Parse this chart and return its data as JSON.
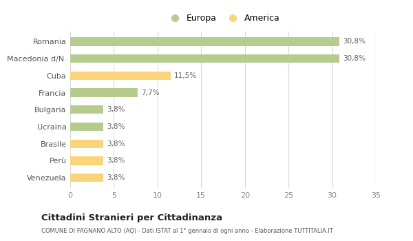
{
  "categories": [
    "Venezuela",
    "Perù",
    "Brasile",
    "Ucraina",
    "Bulgaria",
    "Francia",
    "Cuba",
    "Macedonia d/N.",
    "Romania"
  ],
  "values": [
    3.8,
    3.8,
    3.8,
    3.8,
    3.8,
    7.7,
    11.5,
    30.8,
    30.8
  ],
  "labels": [
    "3,8%",
    "3,8%",
    "3,8%",
    "3,8%",
    "3,8%",
    "7,7%",
    "11,5%",
    "30,8%",
    "30,8%"
  ],
  "colors": [
    "#f9d47a",
    "#f9d47a",
    "#f9d47a",
    "#b5cc8e",
    "#b5cc8e",
    "#b5cc8e",
    "#f9d47a",
    "#b5cc8e",
    "#b5cc8e"
  ],
  "legend": [
    {
      "label": "Europa",
      "color": "#b5cc8e"
    },
    {
      "label": "America",
      "color": "#f9d47a"
    }
  ],
  "xlim": [
    0,
    35
  ],
  "xticks": [
    0,
    5,
    10,
    15,
    20,
    25,
    30,
    35
  ],
  "title": "Cittadini Stranieri per Cittadinanza",
  "subtitle": "COMUNE DI FAGNANO ALTO (AQ) - Dati ISTAT al 1° gennaio di ogni anno - Elaborazione TUTTITALIA.IT",
  "bg_color": "#ffffff",
  "grid_color": "#d8d8d8",
  "bar_height": 0.5
}
